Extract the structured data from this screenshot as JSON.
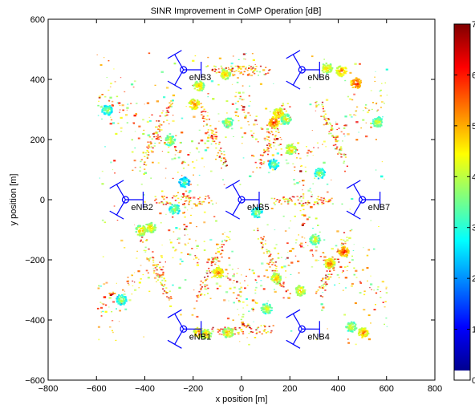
{
  "chart_data": {
    "type": "heatmap",
    "title": "SINR Improvement in CoMP Operation [dB]",
    "xlabel": "x position [m]",
    "ylabel": "y position [m]",
    "xlim": [
      -800,
      800
    ],
    "ylim": [
      -600,
      600
    ],
    "xticks": [
      -800,
      -600,
      -400,
      -200,
      0,
      200,
      400,
      600,
      800
    ],
    "yticks": [
      -600,
      -400,
      -200,
      0,
      200,
      400,
      600
    ],
    "xtick_labels": [
      "−800",
      "−600",
      "−400",
      "−200",
      "0",
      "200",
      "400",
      "600",
      "800"
    ],
    "ytick_labels": [
      "−600",
      "−400",
      "−200",
      "0",
      "200",
      "400",
      "600"
    ],
    "grid": false,
    "colorbar": {
      "min": 0,
      "max": 7,
      "ticks": [
        0,
        1,
        2,
        3,
        4,
        5,
        6,
        7
      ],
      "tick_labels": [
        "0",
        "1",
        "2",
        "3",
        "4",
        "5",
        "6",
        "7"
      ],
      "colormap": "jet",
      "zero_color": "#ffffff"
    },
    "base_stations": [
      {
        "name": "eNB1",
        "x": -240,
        "y": -430
      },
      {
        "name": "eNB2",
        "x": -480,
        "y": 0
      },
      {
        "name": "eNB3",
        "x": -240,
        "y": 432
      },
      {
        "name": "eNB4",
        "x": 250,
        "y": -430
      },
      {
        "name": "eNB5",
        "x": 0,
        "y": 0
      },
      {
        "name": "eNB6",
        "x": 250,
        "y": 432
      },
      {
        "name": "eNB7",
        "x": 500,
        "y": 0
      }
    ],
    "sector_azimuths_deg": [
      0,
      120,
      240
    ],
    "hotspots": [
      {
        "x": 150,
        "y": 290,
        "v": 5.5
      },
      {
        "x": 130,
        "y": 260,
        "v": 6.0
      },
      {
        "x": 350,
        "y": 440,
        "v": 5.0
      },
      {
        "x": 410,
        "y": 430,
        "v": 5.5
      },
      {
        "x": 470,
        "y": 390,
        "v": 6.2
      },
      {
        "x": 180,
        "y": 270,
        "v": 4.5
      },
      {
        "x": -200,
        "y": 320,
        "v": 5.5
      },
      {
        "x": -180,
        "y": 380,
        "v": 5.0
      },
      {
        "x": -70,
        "y": 420,
        "v": 5.0
      },
      {
        "x": 420,
        "y": -170,
        "v": 6.0
      },
      {
        "x": 360,
        "y": -210,
        "v": 5.5
      },
      {
        "x": -380,
        "y": -90,
        "v": 5.0
      },
      {
        "x": -420,
        "y": -100,
        "v": 5.0
      },
      {
        "x": -100,
        "y": -240,
        "v": 5.5
      },
      {
        "x": 140,
        "y": -260,
        "v": 5.0
      },
      {
        "x": -180,
        "y": -440,
        "v": 5.5
      },
      {
        "x": -150,
        "y": -445,
        "v": 5.0
      },
      {
        "x": -60,
        "y": -440,
        "v": 5.0
      },
      {
        "x": 500,
        "y": -440,
        "v": 5.5
      },
      {
        "x": 450,
        "y": -420,
        "v": 4.5
      },
      {
        "x": 300,
        "y": -130,
        "v": 4.5
      },
      {
        "x": -300,
        "y": 200,
        "v": 4.5
      },
      {
        "x": 60,
        "y": -40,
        "v": 4.0
      },
      {
        "x": -280,
        "y": -30,
        "v": 4.0
      },
      {
        "x": 130,
        "y": 120,
        "v": 3.8
      },
      {
        "x": -240,
        "y": 60,
        "v": 3.5
      },
      {
        "x": 320,
        "y": 90,
        "v": 4.0
      },
      {
        "x": 100,
        "y": -360,
        "v": 4.5
      },
      {
        "x": -500,
        "y": -330,
        "v": 4.0
      },
      {
        "x": 560,
        "y": 260,
        "v": 4.5
      },
      {
        "x": -560,
        "y": 300,
        "v": 4.0
      },
      {
        "x": 200,
        "y": 170,
        "v": 5.0
      },
      {
        "x": -60,
        "y": 260,
        "v": 4.5
      },
      {
        "x": 240,
        "y": -300,
        "v": 5.0
      }
    ]
  }
}
